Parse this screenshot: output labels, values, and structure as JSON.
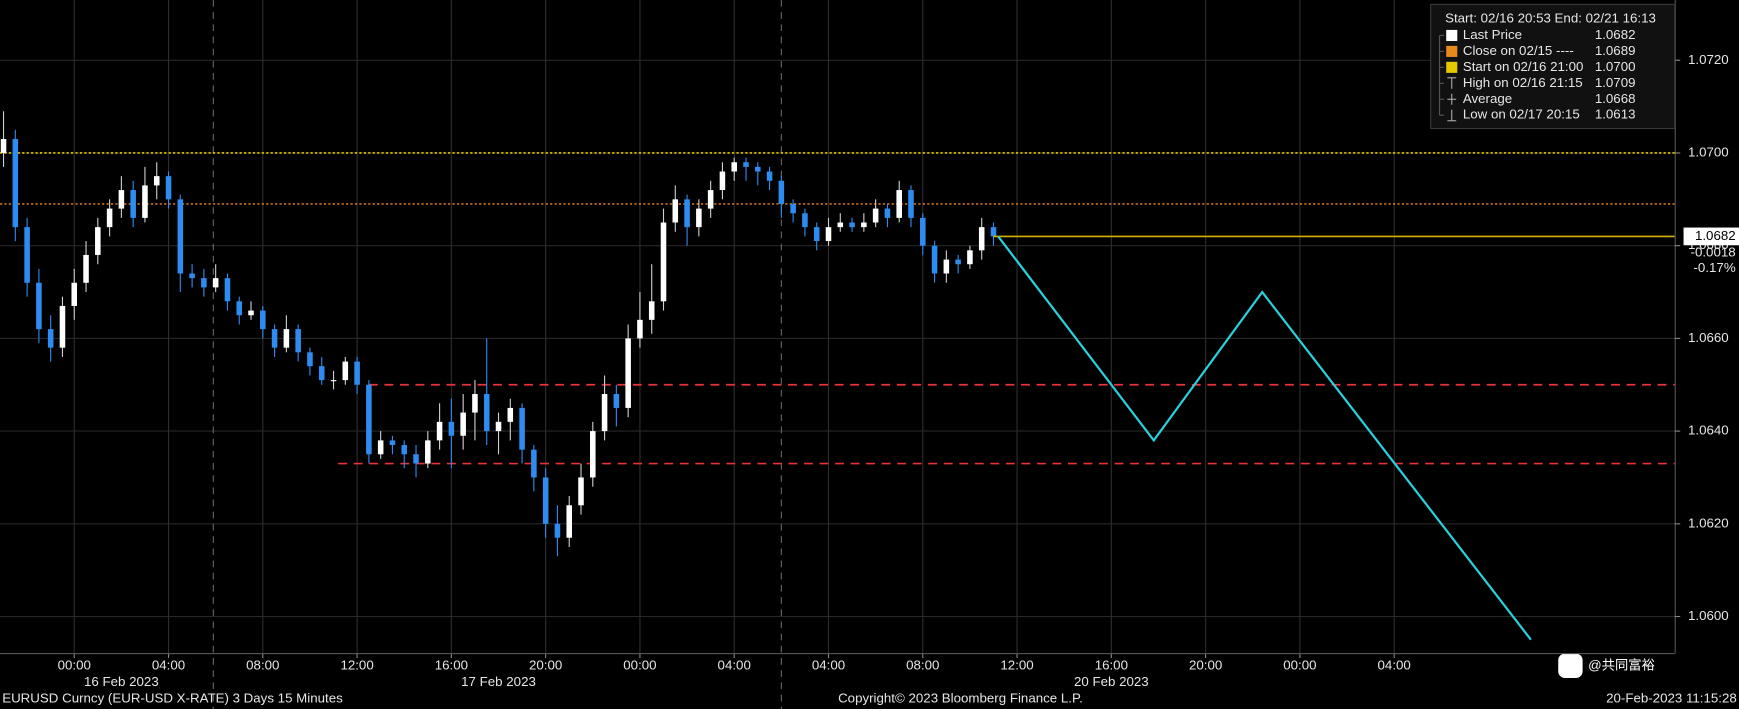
{
  "chart_data": {
    "type": "candlestick",
    "ylim": [
      1.0592,
      1.0733
    ],
    "xlim": [
      -3.15,
      67.9
    ],
    "yticks": [
      {
        "value": 1.06,
        "label": "1.0600"
      },
      {
        "value": 1.062,
        "label": "1.0620"
      },
      {
        "value": 1.064,
        "label": "1.0640"
      },
      {
        "value": 1.066,
        "label": "1.0660"
      },
      {
        "value": 1.068,
        "label": "1.0680"
      },
      {
        "value": 1.07,
        "label": "1.0700"
      },
      {
        "value": 1.072,
        "label": "1.0720"
      }
    ],
    "xticks": [
      {
        "value": 0,
        "label": "00:00"
      },
      {
        "value": 4,
        "label": "04:00"
      },
      {
        "value": 8,
        "label": "08:00"
      },
      {
        "value": 12,
        "label": "12:00"
      },
      {
        "value": 16,
        "label": "16:00"
      },
      {
        "value": 20,
        "label": "20:00"
      },
      {
        "value": 24,
        "label": "00:00"
      },
      {
        "value": 28,
        "label": "04:00"
      },
      {
        "value": 32,
        "label": "04:00"
      },
      {
        "value": 36,
        "label": "08:00"
      },
      {
        "value": 40,
        "label": "12:00"
      },
      {
        "value": 44,
        "label": "16:00"
      },
      {
        "value": 48,
        "label": "20:00"
      },
      {
        "value": 52,
        "label": "00:00"
      },
      {
        "value": 56,
        "label": "04:00"
      }
    ],
    "date_labels": [
      "16 Feb 2023",
      "17 Feb 2023",
      "20 Feb 2023"
    ],
    "session_breaks": [
      5.9,
      30.0
    ],
    "grid": true,
    "candles": {
      "up_color": "#ffffff",
      "down_color": "#2e8cf0",
      "x": [
        -3,
        -2.5,
        -2,
        -1.5,
        -1,
        -0.5,
        0,
        0.5,
        1,
        1.5,
        2,
        2.5,
        3,
        3.5,
        4,
        4.5,
        5,
        5.5,
        6,
        6.5,
        7,
        7.5,
        8,
        8.5,
        9,
        9.5,
        10,
        10.5,
        11,
        11.5,
        12,
        12.5,
        13,
        13.5,
        14,
        14.5,
        15,
        15.5,
        16,
        16.5,
        17,
        17.5,
        18,
        18.5,
        19,
        19.5,
        20,
        20.5,
        21,
        21.5,
        22,
        22.5,
        23,
        23.5,
        24,
        24.5,
        25,
        25.5,
        26,
        26.5,
        27,
        27.5,
        28,
        28.5,
        29,
        29.5,
        30,
        30.5,
        31,
        31.5,
        32,
        32.5,
        33,
        33.5,
        34,
        34.5,
        35,
        35.5,
        36,
        36.5,
        37,
        37.5,
        38,
        38.5,
        39
      ],
      "open": [
        1.07,
        1.0703,
        1.0684,
        1.0672,
        1.0662,
        1.0658,
        1.0667,
        1.0672,
        1.0678,
        1.0684,
        1.0688,
        1.0692,
        1.0686,
        1.0693,
        1.0695,
        1.069,
        1.0674,
        1.0673,
        1.0671,
        1.0673,
        1.0668,
        1.0665,
        1.0666,
        1.0662,
        1.0658,
        1.0662,
        1.0657,
        1.0654,
        1.0651,
        1.0651,
        1.0655,
        1.065,
        1.0635,
        1.0638,
        1.0637,
        1.0635,
        1.0633,
        1.0638,
        1.0642,
        1.0639,
        1.0644,
        1.0648,
        1.064,
        1.0642,
        1.0645,
        1.0636,
        1.063,
        1.062,
        1.0617,
        1.0624,
        1.063,
        1.064,
        1.0648,
        1.0645,
        1.066,
        1.0664,
        1.0668,
        1.0685,
        1.069,
        1.0684,
        1.0688,
        1.0692,
        1.0696,
        1.0698,
        1.0697,
        1.0696,
        1.0694,
        1.0689,
        1.0687,
        1.0684,
        1.0681,
        1.0684,
        1.0685,
        1.0684,
        1.0685,
        1.0688,
        1.0686,
        1.0692,
        1.0686,
        1.068,
        1.0674,
        1.0677,
        1.0676,
        1.0679,
        1.0684
      ],
      "high": [
        1.0709,
        1.0705,
        1.0686,
        1.0675,
        1.0665,
        1.0669,
        1.0675,
        1.0681,
        1.0686,
        1.069,
        1.0695,
        1.0694,
        1.0697,
        1.0698,
        1.0696,
        1.0691,
        1.0676,
        1.0675,
        1.0676,
        1.0674,
        1.0669,
        1.0668,
        1.0667,
        1.0663,
        1.0665,
        1.0663,
        1.0658,
        1.0656,
        1.0653,
        1.0656,
        1.0656,
        1.0651,
        1.064,
        1.0639,
        1.0638,
        1.0637,
        1.064,
        1.0646,
        1.0647,
        1.0648,
        1.0651,
        1.066,
        1.0644,
        1.0647,
        1.0646,
        1.0637,
        1.0632,
        1.0624,
        1.0626,
        1.0633,
        1.0642,
        1.0652,
        1.065,
        1.0663,
        1.067,
        1.0676,
        1.0688,
        1.0693,
        1.0691,
        1.069,
        1.0694,
        1.0698,
        1.0699,
        1.0699,
        1.0698,
        1.0697,
        1.0695,
        1.069,
        1.0688,
        1.0685,
        1.0686,
        1.0687,
        1.0686,
        1.0687,
        1.069,
        1.0689,
        1.0694,
        1.0693,
        1.0687,
        1.0681,
        1.0679,
        1.0678,
        1.068,
        1.0686,
        1.0685
      ],
      "low": [
        1.0697,
        1.0681,
        1.0669,
        1.0659,
        1.0655,
        1.0656,
        1.0664,
        1.067,
        1.0676,
        1.0682,
        1.0686,
        1.0684,
        1.0685,
        1.069,
        1.0688,
        1.067,
        1.0671,
        1.0669,
        1.067,
        1.0666,
        1.0663,
        1.0664,
        1.066,
        1.0656,
        1.0657,
        1.0655,
        1.0652,
        1.065,
        1.0649,
        1.065,
        1.0648,
        1.0633,
        1.0634,
        1.0635,
        1.0632,
        1.063,
        1.0632,
        1.0636,
        1.0632,
        1.0636,
        1.0638,
        1.0637,
        1.0635,
        1.0638,
        1.0633,
        1.0627,
        1.0617,
        1.0613,
        1.0615,
        1.0622,
        1.0628,
        1.0638,
        1.0641,
        1.0643,
        1.0658,
        1.0661,
        1.0666,
        1.0683,
        1.068,
        1.0682,
        1.0686,
        1.069,
        1.0694,
        1.0694,
        1.0693,
        1.0692,
        1.0686,
        1.0685,
        1.0682,
        1.0679,
        1.068,
        1.0683,
        1.0683,
        1.0683,
        1.0684,
        1.0684,
        1.0685,
        1.0684,
        1.0678,
        1.0672,
        1.0672,
        1.0674,
        1.0675,
        1.0677,
        1.068
      ],
      "close": [
        1.0703,
        1.0684,
        1.0672,
        1.0662,
        1.0658,
        1.0667,
        1.0672,
        1.0678,
        1.0684,
        1.0688,
        1.0692,
        1.0686,
        1.0693,
        1.0695,
        1.069,
        1.0674,
        1.0673,
        1.0671,
        1.0673,
        1.0668,
        1.0665,
        1.0666,
        1.0662,
        1.0658,
        1.0662,
        1.0657,
        1.0654,
        1.0651,
        1.0651,
        1.0655,
        1.065,
        1.0635,
        1.0638,
        1.0637,
        1.0635,
        1.0633,
        1.0638,
        1.0642,
        1.0639,
        1.0644,
        1.0648,
        1.064,
        1.0642,
        1.0645,
        1.0636,
        1.063,
        1.062,
        1.0617,
        1.0624,
        1.063,
        1.064,
        1.0648,
        1.0645,
        1.066,
        1.0664,
        1.0668,
        1.0685,
        1.069,
        1.0684,
        1.0688,
        1.0692,
        1.0696,
        1.0698,
        1.0697,
        1.0696,
        1.0694,
        1.0689,
        1.0687,
        1.0684,
        1.0681,
        1.0684,
        1.0685,
        1.0684,
        1.0685,
        1.0688,
        1.0686,
        1.0692,
        1.0686,
        1.068,
        1.0674,
        1.0677,
        1.0676,
        1.0679,
        1.0684,
        1.0682
      ]
    },
    "ref_lines": [
      {
        "value": 1.07,
        "color": "#e6c800"
      },
      {
        "value": 1.0689,
        "color": "#c8741c"
      }
    ],
    "last_line": {
      "value": 1.0682,
      "color": "#d4b400"
    },
    "support_lines": [
      {
        "value": 1.065,
        "from": 12.5,
        "color": "#e8323c"
      },
      {
        "value": 1.0633,
        "from": 11.2,
        "color": "#e8323c"
      }
    ],
    "projection": {
      "color": "#2ccfdc",
      "x": [
        39.2,
        45.8,
        50.4,
        61.8
      ],
      "values": [
        1.0682,
        1.0638,
        1.067,
        1.0595
      ]
    },
    "last_label": {
      "price": {
        "value": 1.0682,
        "label": "1.0682"
      },
      "change": {
        "value": -0.0018,
        "label": "-0.0018"
      },
      "change_pct": {
        "value": -0.17,
        "label": "-0.17%"
      }
    },
    "legend": {
      "header": "Start: 02/16 20:53 End: 02/21 16:13",
      "entries": [
        {
          "name": "Last Price",
          "value": 1.0682,
          "color": "#ffffff"
        },
        {
          "name": "Close on 02/15 ----",
          "value": 1.0689,
          "color": "#e8891e"
        },
        {
          "name": "Start on 02/16 21:00",
          "value": {
            "value": 1.07,
            "label": "1.0700"
          },
          "color": "#e6c800"
        },
        {
          "name": "High on 02/16 21:15",
          "value": 1.0709
        },
        {
          "name": "Average",
          "value": 1.0668
        },
        {
          "name": "Low on 02/17 20:15",
          "value": 1.0613
        }
      ]
    },
    "footer": {
      "ticker": "EURUSD Curncy (EUR-USD X-RATE) 3 Days 15 Minutes",
      "copyright": "Copyright© 2023 Bloomberg Finance L.P.",
      "timestamp": "20-Feb-2023 11:15:28"
    },
    "watermark": "@共同富裕"
  }
}
